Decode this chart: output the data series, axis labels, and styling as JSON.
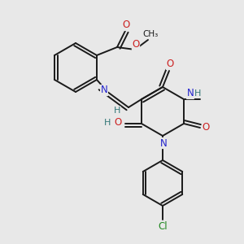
{
  "background_color": "#e8e8e8",
  "bond_color": "#1a1a1a",
  "atom_colors": {
    "N": "#2222cc",
    "O": "#cc2222",
    "H": "#337777",
    "Cl": "#228822",
    "C": "#1a1a1a"
  },
  "figsize": [
    3.0,
    3.0
  ],
  "dpi": 100,
  "scale": 1.0
}
